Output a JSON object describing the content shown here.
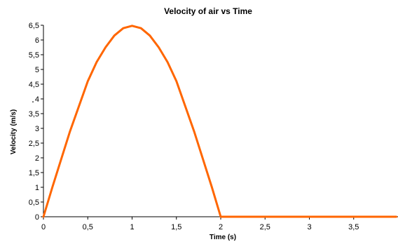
{
  "chart_data": {
    "type": "line",
    "title": "Velocity of air vs Time",
    "xlabel": "Time (s)",
    "ylabel": "Velocity (m/s)",
    "xlim": [
      0,
      4
    ],
    "ylim": [
      0,
      6.5
    ],
    "x_ticks": [
      "0",
      "0,5",
      "1",
      "1,5",
      "2",
      "2,5",
      "3",
      "3,5"
    ],
    "x_tick_values": [
      0,
      0.5,
      1,
      1.5,
      2,
      2.5,
      3,
      3.5
    ],
    "y_ticks": [
      "0",
      "0,5",
      "1",
      "1,5",
      "2",
      "2,5",
      "3",
      "3,5",
      "4",
      "4,5",
      "5",
      "5,5",
      "6",
      "6,5"
    ],
    "y_tick_values": [
      0,
      0.5,
      1,
      1.5,
      2,
      2.5,
      3,
      3.5,
      4,
      4.5,
      5,
      5.5,
      6,
      6.5
    ],
    "grid": false,
    "annotation": ".",
    "colors": {
      "series": "#ff6600"
    },
    "series": [
      {
        "x": [
          0,
          0.1,
          0.2,
          0.3,
          0.4,
          0.5,
          0.6,
          0.7,
          0.8,
          0.9,
          1.0,
          1.1,
          1.2,
          1.3,
          1.4,
          1.5,
          1.6,
          1.7,
          1.8,
          1.9,
          2.0,
          2.5,
          3.0,
          3.5,
          3.98
        ],
        "y": [
          0,
          1.0,
          1.95,
          2.9,
          3.75,
          4.6,
          5.25,
          5.75,
          6.15,
          6.4,
          6.48,
          6.4,
          6.15,
          5.75,
          5.25,
          4.6,
          3.75,
          2.9,
          1.95,
          1.0,
          0,
          0,
          0,
          0,
          0
        ]
      }
    ]
  }
}
